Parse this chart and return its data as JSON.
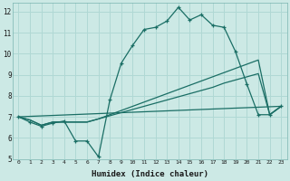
{
  "xlabel": "Humidex (Indice chaleur)",
  "xlim": [
    -0.5,
    23.5
  ],
  "ylim": [
    5,
    12.4
  ],
  "xticks": [
    0,
    1,
    2,
    3,
    4,
    5,
    6,
    7,
    8,
    9,
    10,
    11,
    12,
    13,
    14,
    15,
    16,
    17,
    18,
    19,
    20,
    21,
    22,
    23
  ],
  "yticks": [
    5,
    6,
    7,
    8,
    9,
    10,
    11,
    12
  ],
  "bg_color": "#cce9e5",
  "grid_color": "#b0d8d4",
  "line_color": "#1a6e65",
  "line1_x": [
    0,
    1,
    2,
    3,
    4,
    5,
    6,
    7,
    8,
    9,
    10,
    11,
    12,
    13,
    14,
    15,
    16,
    17,
    18,
    19,
    20,
    21,
    22,
    23
  ],
  "line1_y": [
    7.0,
    6.75,
    6.55,
    6.7,
    6.8,
    5.85,
    5.85,
    5.1,
    7.8,
    9.55,
    10.4,
    11.15,
    11.25,
    11.55,
    12.2,
    11.6,
    11.85,
    11.35,
    11.25,
    10.1,
    8.55,
    7.1,
    7.1,
    7.5
  ],
  "line2_x": [
    0,
    1,
    2,
    3,
    4,
    5,
    6,
    7,
    8,
    9,
    10,
    11,
    12,
    13,
    14,
    15,
    16,
    17,
    18,
    19,
    20,
    21,
    22,
    23
  ],
  "line2_y": [
    7.0,
    6.85,
    6.6,
    6.75,
    6.75,
    6.75,
    6.75,
    6.9,
    7.1,
    7.3,
    7.5,
    7.7,
    7.9,
    8.1,
    8.3,
    8.5,
    8.7,
    8.9,
    9.1,
    9.3,
    9.5,
    9.7,
    7.1,
    7.5
  ],
  "line3_x": [
    0,
    1,
    2,
    3,
    4,
    5,
    6,
    7,
    8,
    9,
    10,
    11,
    12,
    13,
    14,
    15,
    16,
    17,
    18,
    19,
    20,
    21,
    22,
    23
  ],
  "line3_y": [
    7.0,
    6.85,
    6.6,
    6.75,
    6.75,
    6.75,
    6.75,
    6.9,
    7.05,
    7.2,
    7.35,
    7.5,
    7.65,
    7.8,
    7.95,
    8.1,
    8.25,
    8.4,
    8.6,
    8.75,
    8.9,
    9.05,
    7.1,
    7.5
  ],
  "line4_x": [
    0,
    23
  ],
  "line4_y": [
    7.0,
    7.5
  ]
}
